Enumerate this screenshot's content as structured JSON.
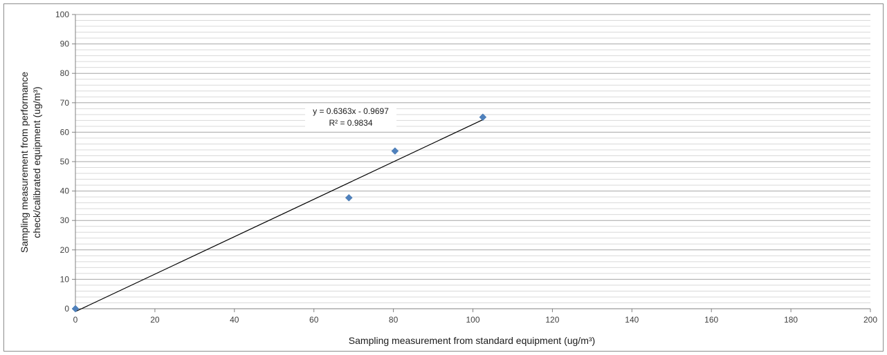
{
  "chart_data": {
    "type": "scatter",
    "title": "",
    "xlabel": "Sampling measurement from standard equipment  (ug/m³)",
    "ylabel_lines": [
      "Sampling measurement from performance",
      "check/calibrated equipment (ug/m³)"
    ],
    "xlim": [
      0,
      200
    ],
    "ylim": [
      0,
      100
    ],
    "x_ticks": [
      0,
      20,
      40,
      60,
      80,
      100,
      120,
      140,
      160,
      180,
      200
    ],
    "y_ticks": [
      0,
      10,
      20,
      30,
      40,
      50,
      60,
      70,
      80,
      90,
      100
    ],
    "grid": true,
    "legend": "none",
    "series": [
      {
        "marker": "diamond",
        "color": "#4f81bd",
        "points": [
          {
            "x": 0,
            "y": 0
          },
          {
            "x": 68.8,
            "y": 37.7
          },
          {
            "x": 80.4,
            "y": 53.6
          },
          {
            "x": 102.5,
            "y": 65.1
          }
        ]
      }
    ],
    "trendline": {
      "type": "linear",
      "slope": 0.6363,
      "intercept": -0.9697,
      "x_range": [
        0,
        102.5
      ],
      "color": "#000000",
      "equation": "y = 0.6363x - 0.9697",
      "r_squared": "R² = 0.9834"
    }
  }
}
